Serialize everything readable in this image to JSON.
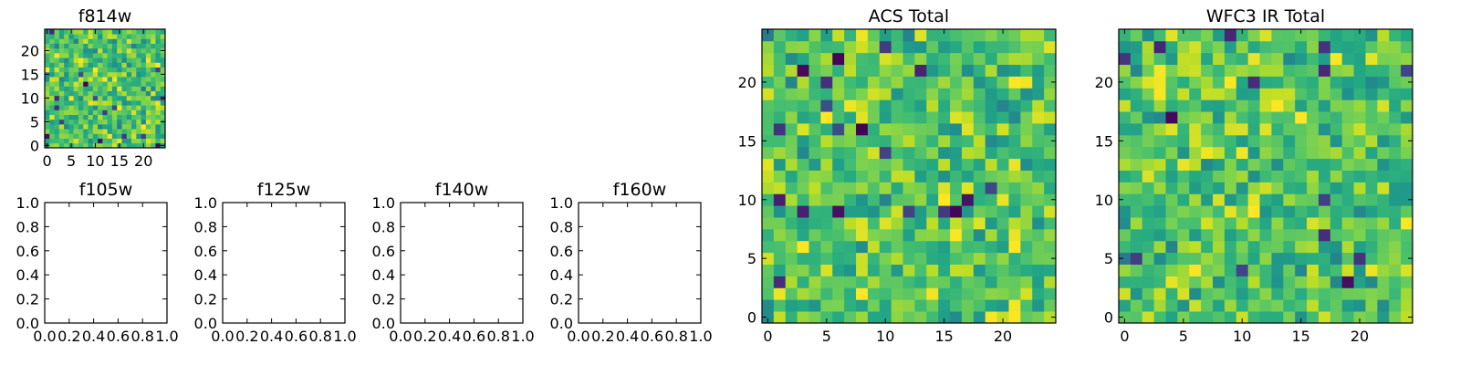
{
  "chart_data": [
    {
      "id": "f814w",
      "type": "heatmap",
      "title": "f814w",
      "colormap": "viridis",
      "grid_size": 25,
      "xlim": [
        -0.5,
        24.5
      ],
      "ylim": [
        -0.5,
        24.5
      ],
      "xticks": [
        0,
        5,
        10,
        15,
        20
      ],
      "yticks": [
        0,
        5,
        10,
        15,
        20
      ],
      "xtick_labels": [
        "0",
        "5",
        "10",
        "15",
        "20"
      ],
      "ytick_labels": [
        "0",
        "5",
        "10",
        "15",
        "20"
      ],
      "seed": 814
    },
    {
      "id": "f105w",
      "type": "empty",
      "title": "f105w",
      "xlim": [
        0,
        1
      ],
      "ylim": [
        0,
        1
      ],
      "xtick_labels": [
        "0.0",
        "0.2",
        "0.4",
        "0.6",
        "0.8",
        "1.0"
      ],
      "ytick_labels": [
        "0.0",
        "0.2",
        "0.4",
        "0.6",
        "0.8",
        "1.0"
      ]
    },
    {
      "id": "f125w",
      "type": "empty",
      "title": "f125w",
      "xlim": [
        0,
        1
      ],
      "ylim": [
        0,
        1
      ],
      "xtick_labels": [
        "0.0",
        "0.2",
        "0.4",
        "0.6",
        "0.8",
        "1.0"
      ],
      "ytick_labels": [
        "0.0",
        "0.2",
        "0.4",
        "0.6",
        "0.8",
        "1.0"
      ]
    },
    {
      "id": "f140w",
      "type": "empty",
      "title": "f140w",
      "xlim": [
        0,
        1
      ],
      "ylim": [
        0,
        1
      ],
      "xtick_labels": [
        "0.0",
        "0.2",
        "0.4",
        "0.6",
        "0.8",
        "1.0"
      ],
      "ytick_labels": [
        "0.0",
        "0.2",
        "0.4",
        "0.6",
        "0.8",
        "1.0"
      ]
    },
    {
      "id": "f160w",
      "type": "empty",
      "title": "f160w",
      "xlim": [
        0,
        1
      ],
      "ylim": [
        0,
        1
      ],
      "xtick_labels": [
        "0.0",
        "0.2",
        "0.4",
        "0.6",
        "0.8",
        "1.0"
      ],
      "ytick_labels": [
        "0.0",
        "0.2",
        "0.4",
        "0.6",
        "0.8",
        "1.0"
      ]
    },
    {
      "id": "acs-total",
      "type": "heatmap",
      "title": "ACS Total",
      "colormap": "viridis",
      "grid_size": 25,
      "xlim": [
        -0.5,
        24.5
      ],
      "ylim": [
        -0.5,
        24.5
      ],
      "xticks": [
        0,
        5,
        10,
        15,
        20
      ],
      "yticks": [
        0,
        5,
        10,
        15,
        20
      ],
      "xtick_labels": [
        "0",
        "5",
        "10",
        "15",
        "20"
      ],
      "ytick_labels": [
        "0",
        "5",
        "10",
        "15",
        "20"
      ],
      "seed": 1001
    },
    {
      "id": "wfc3-ir-total",
      "type": "heatmap",
      "title": "WFC3 IR Total",
      "colormap": "viridis",
      "grid_size": 25,
      "xlim": [
        -0.5,
        24.5
      ],
      "ylim": [
        -0.5,
        24.5
      ],
      "xticks": [
        0,
        5,
        10,
        15,
        20
      ],
      "yticks": [
        0,
        5,
        10,
        15,
        20
      ],
      "xtick_labels": [
        "0",
        "5",
        "10",
        "15",
        "20"
      ],
      "ytick_labels": [
        "0",
        "5",
        "10",
        "15",
        "20"
      ],
      "seed": 3003
    }
  ]
}
